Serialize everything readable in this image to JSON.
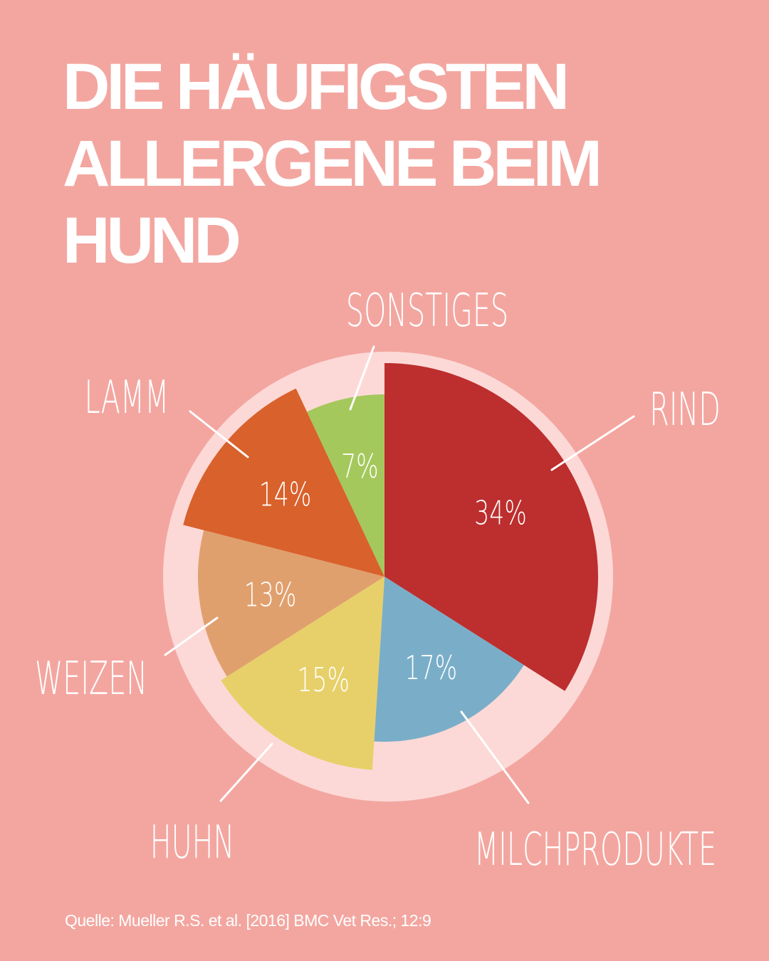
{
  "title_lines": [
    "DIE HÄUFIGSTEN",
    "ALLERGENE BEIM",
    "HUND"
  ],
  "source": "Quelle: Mueller R.S. et al. [2016] BMC Vet Res.; 12:9",
  "colors": {
    "background": "#f3a6a0",
    "pie_backdrop": "#fcd9d7"
  },
  "chart_data": {
    "type": "pie",
    "title": "DIE HÄUFIGSTEN ALLERGENE BEIM HUND",
    "start": "top",
    "direction": "clockwise",
    "unit": "%",
    "slices": [
      {
        "name": "RIND",
        "value": 34,
        "label": "34%",
        "color": "#bd2e2e"
      },
      {
        "name": "MILCHPRODUKTE",
        "value": 17,
        "label": "17%",
        "color": "#7aaec8"
      },
      {
        "name": "HUHN",
        "value": 15,
        "label": "15%",
        "color": "#e7d069"
      },
      {
        "name": "WEIZEN",
        "value": 13,
        "label": "13%",
        "color": "#e0a06e"
      },
      {
        "name": "LAMM",
        "value": 14,
        "label": "14%",
        "color": "#d9612b"
      },
      {
        "name": "SONSTIGES",
        "value": 7,
        "label": "7%",
        "color": "#a4c85c"
      }
    ]
  }
}
